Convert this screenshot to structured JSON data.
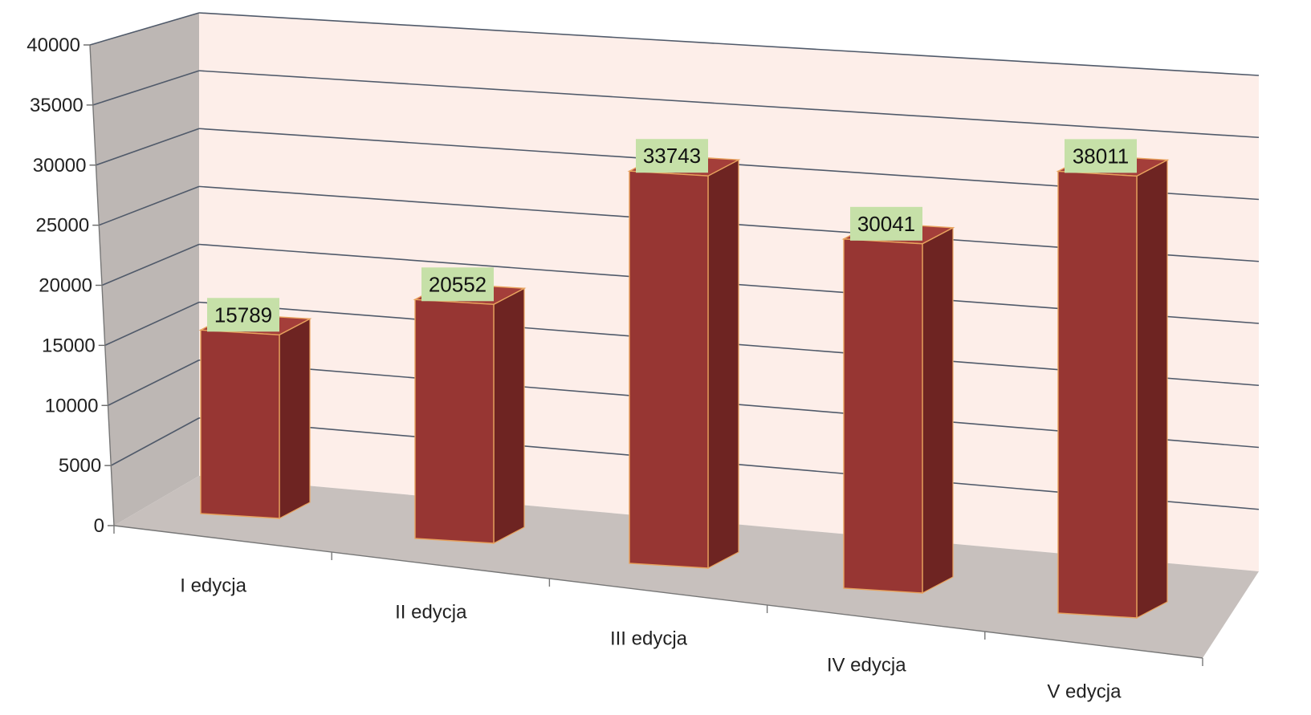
{
  "chart_data": {
    "type": "bar",
    "style": "3d-column",
    "categories": [
      "I edycja",
      "II edycja",
      "III edycja",
      "IV edycja",
      "V edycja"
    ],
    "values": [
      15789,
      20552,
      33743,
      30041,
      38011
    ],
    "title": "",
    "xlabel": "",
    "ylabel": "",
    "ylim": [
      0,
      40000
    ],
    "yticks": [
      0,
      5000,
      10000,
      15000,
      20000,
      25000,
      30000,
      35000,
      40000
    ],
    "grid": true,
    "legend": "none",
    "colors": {
      "bar_front": "#973633",
      "bar_side": "#6e2422",
      "bar_top": "#a43e3a",
      "bar_edge": "#e8a35e",
      "back_wall": "#fdeee9",
      "side_wall": "#bdb7b4",
      "floor": "#c7c0bd",
      "gridline": "#505a6a",
      "data_label_bg": "#c6e0a8"
    }
  }
}
